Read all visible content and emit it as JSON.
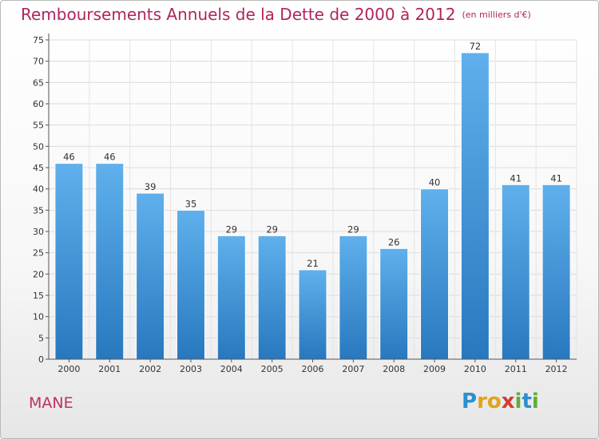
{
  "chart_data": {
    "type": "bar",
    "title": "Remboursements Annuels de la Dette de 2000 à 2012",
    "unit": "(en milliers d'€)",
    "categories": [
      "2000",
      "2001",
      "2002",
      "2003",
      "2004",
      "2005",
      "2006",
      "2007",
      "2008",
      "2009",
      "2010",
      "2011",
      "2012"
    ],
    "values": [
      46,
      46,
      39,
      35,
      29,
      29,
      21,
      29,
      26,
      40,
      72,
      41,
      41
    ],
    "ylim": [
      0,
      75
    ],
    "yticks": [
      0,
      5,
      10,
      15,
      20,
      25,
      30,
      35,
      40,
      45,
      50,
      55,
      60,
      65,
      70,
      75
    ],
    "grid": true,
    "bar_color": "#3d8fd6"
  },
  "commune": "MANE",
  "logo": {
    "letters": [
      "P",
      "r",
      "o",
      "x",
      "i",
      "t",
      "i"
    ],
    "colors": [
      "#2a8fd0",
      "#e3a21a",
      "#e3a21a",
      "#d63a2f",
      "#5fae34",
      "#2a8fd0",
      "#5fae34"
    ]
  }
}
